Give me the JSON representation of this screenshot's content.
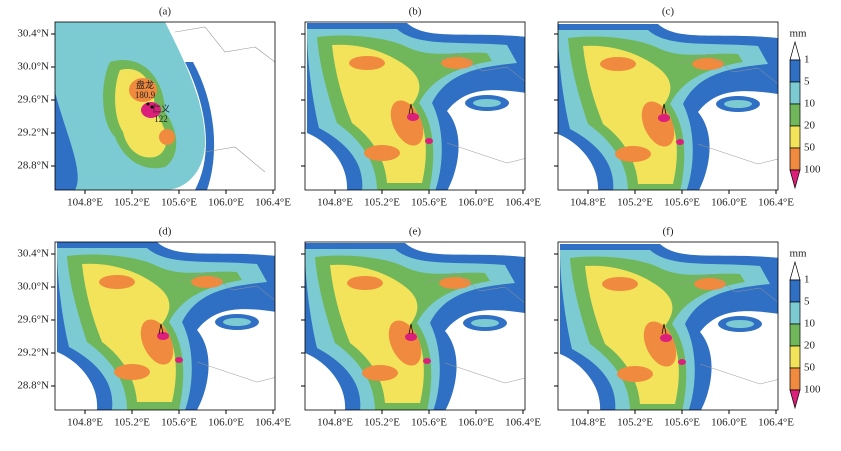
{
  "panels": [
    {
      "label": "(a)"
    },
    {
      "label": "(b)"
    },
    {
      "label": "(c)"
    },
    {
      "label": "(d)"
    },
    {
      "label": "(e)"
    },
    {
      "label": "(f)"
    }
  ],
  "lat_ticks": [
    "30.4°N",
    "30.0°N",
    "29.6°N",
    "29.2°N",
    "28.8°N"
  ],
  "lon_ticks": [
    "104.8°E",
    "105.2°E",
    "105.6°E",
    "106.0°E",
    "106.4°E"
  ],
  "colorbar": {
    "unit": "mm",
    "levels": [
      "1",
      "5",
      "10",
      "20",
      "50",
      "100"
    ],
    "colors": [
      "#ffffff",
      "#2f6fc4",
      "#7ccbd3",
      "#6fb75a",
      "#f2e35a",
      "#ef8a3e",
      "#dc1f7b"
    ]
  },
  "annotations": [
    {
      "name": "盘龙",
      "value": "180.9"
    },
    {
      "name": "仁义",
      "value": "122"
    }
  ]
}
